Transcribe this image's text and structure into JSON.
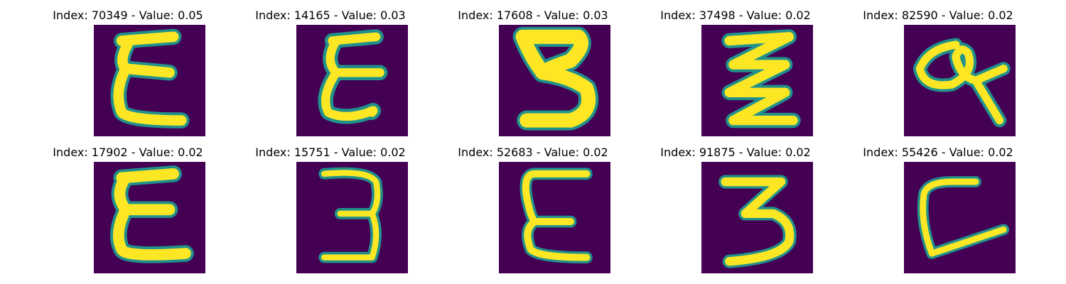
{
  "colors": {
    "background": "#440154",
    "stroke_core": "#fde725",
    "stroke_edge": "#21918c",
    "stroke_mid": "#5ec962"
  },
  "panels": [
    {
      "title": "Index: 70349 - Value: 0.05",
      "digit": "E"
    },
    {
      "title": "Index: 14165 - Value: 0.03",
      "digit": "E"
    },
    {
      "title": "Index: 17608 - Value: 0.03",
      "digit": "3"
    },
    {
      "title": "Index: 37498 - Value: 0.02",
      "digit": "z"
    },
    {
      "title": "Index: 82590 - Value: 0.02",
      "digit": "a"
    },
    {
      "title": "Index: 17902 - Value: 0.02",
      "digit": "E"
    },
    {
      "title": "Index: 15751 - Value: 0.02",
      "digit": "3"
    },
    {
      "title": "Index: 52683 - Value: 0.02",
      "digit": "E"
    },
    {
      "title": "Index: 91875 - Value: 0.02",
      "digit": "3"
    },
    {
      "title": "Index: 55426 - Value: 0.02",
      "digit": "L"
    }
  ]
}
